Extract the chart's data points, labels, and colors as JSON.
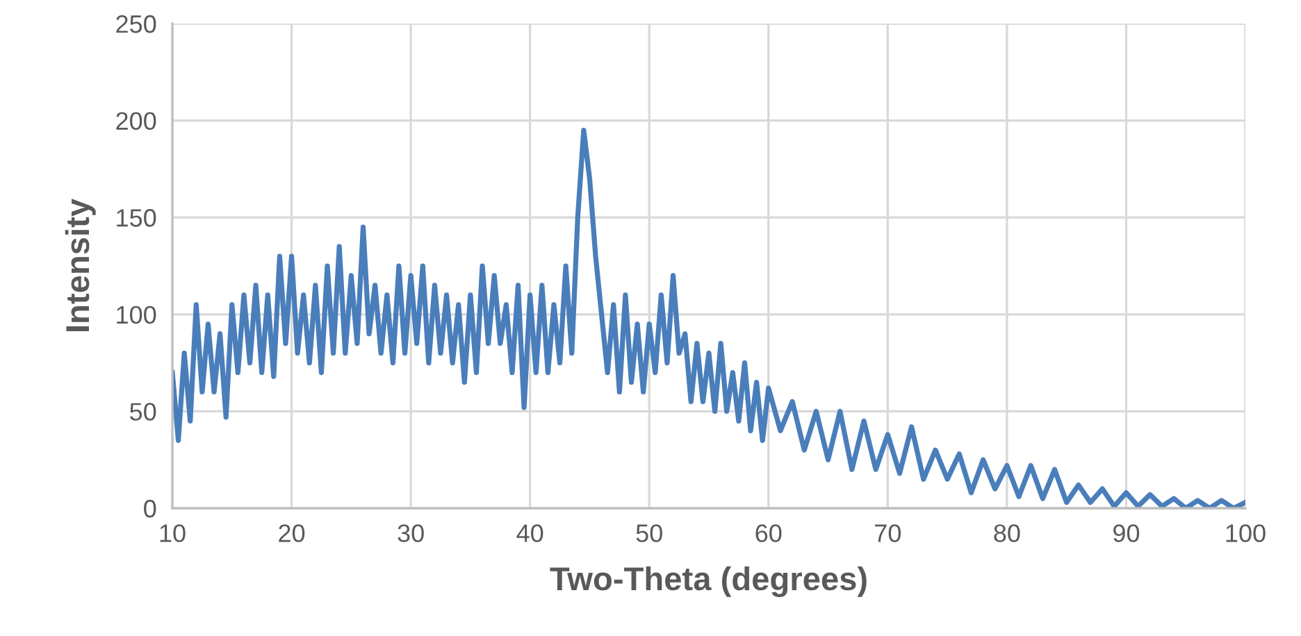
{
  "chart_data": {
    "type": "line",
    "xlabel": "Two-Theta (degrees)",
    "ylabel": "Intensity",
    "x": [
      10,
      10.5,
      11,
      11.5,
      12,
      12.5,
      13,
      13.5,
      14,
      14.5,
      15,
      15.5,
      16,
      16.5,
      17,
      17.5,
      18,
      18.5,
      19,
      19.5,
      20,
      20.5,
      21,
      21.5,
      22,
      22.5,
      23,
      23.5,
      24,
      24.5,
      25,
      25.5,
      26,
      26.5,
      27,
      27.5,
      28,
      28.5,
      29,
      29.5,
      30,
      30.5,
      31,
      31.5,
      32,
      32.5,
      33,
      33.5,
      34,
      34.5,
      35,
      35.5,
      36,
      36.5,
      37,
      37.5,
      38,
      38.5,
      39,
      39.5,
      40,
      40.5,
      41,
      41.5,
      42,
      42.5,
      43,
      43.5,
      44,
      44.5,
      45,
      45.5,
      46,
      46.5,
      47,
      47.5,
      48,
      48.5,
      49,
      49.5,
      50,
      50.5,
      51,
      51.5,
      52,
      52.5,
      53,
      53.5,
      54,
      54.5,
      55,
      55.5,
      56,
      56.5,
      57,
      57.5,
      58,
      58.5,
      59,
      59.5,
      60,
      61,
      62,
      63,
      64,
      65,
      66,
      67,
      68,
      69,
      70,
      71,
      72,
      73,
      74,
      75,
      76,
      77,
      78,
      79,
      80,
      81,
      82,
      83,
      84,
      85,
      86,
      87,
      88,
      89,
      90,
      91,
      92,
      93,
      94,
      95,
      96,
      97,
      98,
      99,
      100
    ],
    "series": [
      {
        "color": "#4a7ebb",
        "values": [
          70,
          35,
          80,
          45,
          105,
          60,
          95,
          60,
          90,
          47,
          105,
          70,
          110,
          75,
          115,
          70,
          110,
          68,
          130,
          85,
          130,
          80,
          110,
          75,
          115,
          70,
          125,
          80,
          135,
          80,
          120,
          85,
          145,
          90,
          115,
          80,
          110,
          75,
          125,
          80,
          120,
          85,
          125,
          75,
          115,
          80,
          110,
          75,
          105,
          65,
          110,
          70,
          125,
          85,
          120,
          85,
          105,
          70,
          115,
          52,
          110,
          70,
          115,
          70,
          105,
          75,
          125,
          80,
          150,
          195,
          170,
          130,
          100,
          70,
          105,
          60,
          110,
          65,
          95,
          60,
          95,
          70,
          110,
          75,
          120,
          80,
          90,
          55,
          85,
          55,
          80,
          50,
          85,
          50,
          70,
          45,
          75,
          40,
          65,
          35,
          62,
          40,
          55,
          30,
          50,
          25,
          50,
          20,
          45,
          20,
          38,
          18,
          42,
          15,
          30,
          15,
          28,
          8,
          25,
          10,
          22,
          6,
          22,
          5,
          20,
          3,
          12,
          3,
          10,
          1,
          8,
          1,
          7,
          1,
          5,
          0,
          4,
          0,
          4,
          0,
          3
        ]
      }
    ],
    "xlim": [
      10,
      100
    ],
    "xticks": [
      10,
      20,
      30,
      40,
      50,
      60,
      70,
      80,
      90,
      100
    ],
    "ylim": [
      0,
      250
    ],
    "yticks": [
      0,
      50,
      100,
      150,
      200,
      250
    ],
    "grid": true,
    "legend": false,
    "marker": "none",
    "line_style": "solid"
  }
}
